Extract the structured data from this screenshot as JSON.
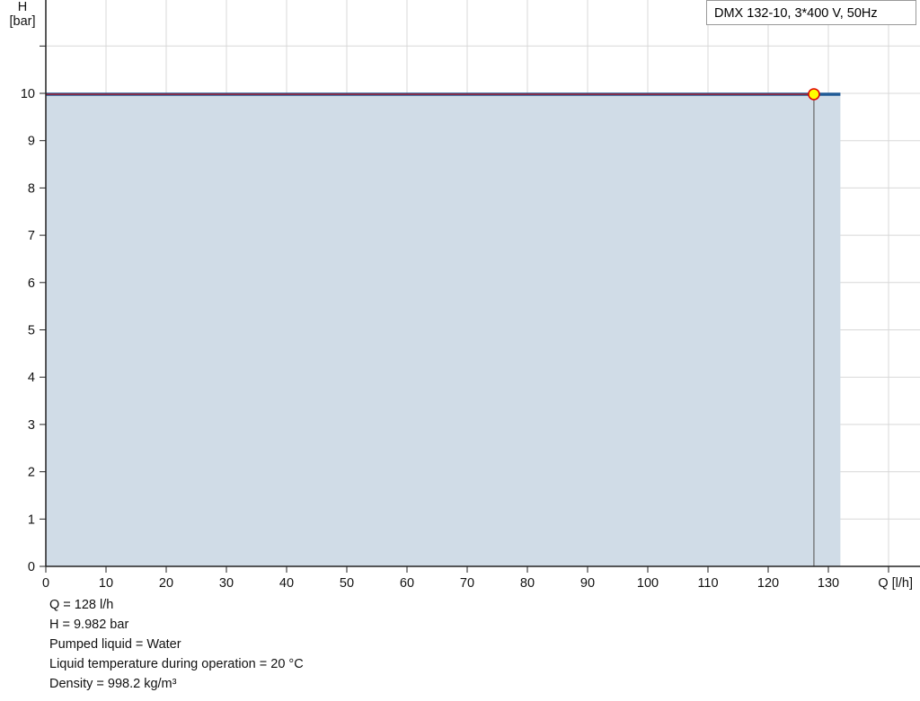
{
  "chart_data": {
    "type": "area",
    "xlabel": "Q [l/h]",
    "ylabel_line1": "H",
    "ylabel_line2": "[bar]",
    "xlim": [
      0,
      140
    ],
    "ylim": [
      0,
      12
    ],
    "xticks": [
      0,
      10,
      20,
      30,
      40,
      50,
      60,
      70,
      80,
      90,
      100,
      110,
      120,
      130
    ],
    "yticks": [
      0,
      1,
      2,
      3,
      4,
      5,
      6,
      7,
      8,
      9,
      10
    ],
    "grid": true,
    "series": [
      {
        "name": "DMX 132-10, 3*400 V, 50Hz",
        "x": [
          0,
          132
        ],
        "y": [
          9.982,
          9.982
        ],
        "color": "#1f5a96",
        "fill": "#d0dce7"
      }
    ],
    "operating_point": {
      "x": 127.6,
      "y": 9.982,
      "color": "#ffff00",
      "edge": "#e00000"
    },
    "legend": "top-right"
  },
  "info": [
    "Q = 128 l/h",
    "H = 9.982 bar",
    "Pumped liquid = Water",
    "Liquid temperature during operation = 20 °C",
    "Density = 998.2 kg/m³"
  ]
}
